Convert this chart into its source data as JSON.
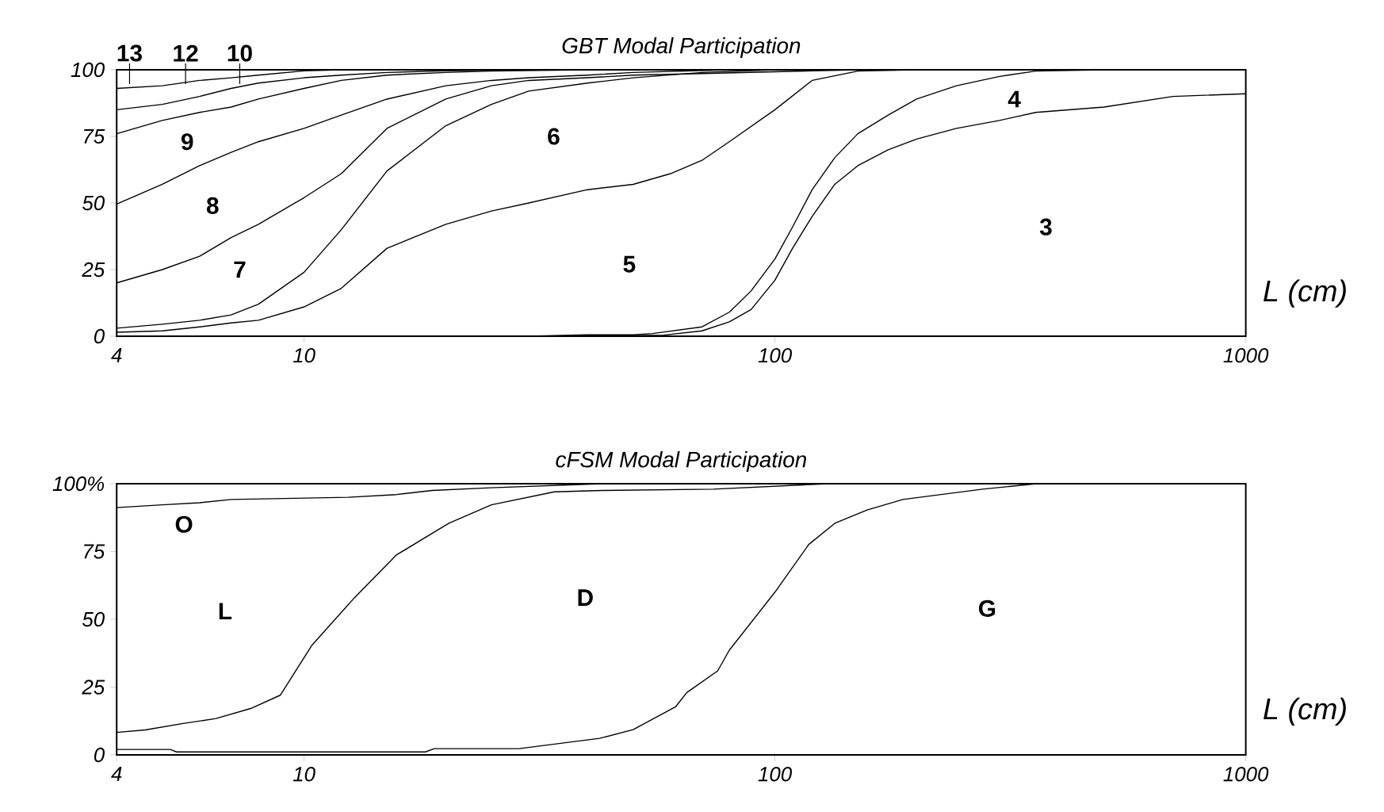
{
  "chart_data": [
    {
      "type": "line",
      "title": "GBT Modal Participation",
      "xlabel": "L (cm)",
      "log": "x",
      "marker": "none",
      "xlim": [
        4,
        1000
      ],
      "xticks": [
        4,
        10,
        100,
        1000
      ],
      "ylim": [
        0,
        100
      ],
      "yticks": [
        0,
        25,
        50,
        75,
        100
      ],
      "series": [
        {
          "color": "#000000",
          "x": [
            4,
            30,
            40,
            50,
            55,
            70,
            80,
            89,
            100,
            109,
            120,
            134,
            150,
            174,
            200,
            243,
            300,
            358,
            500,
            1000
          ],
          "values": [
            0,
            0,
            0.5,
            0.5,
            1,
            3.5,
            9,
            17,
            29,
            41,
            55,
            67,
            76,
            83,
            89,
            94,
            97.5,
            99.5,
            100,
            100
          ]
        },
        {
          "color": "#000000",
          "x": [
            4,
            40,
            58,
            70,
            80,
            89,
            100,
            109,
            120,
            134,
            150,
            174,
            200,
            243,
            300,
            358,
            500,
            700,
            1000
          ],
          "values": [
            0,
            0,
            0.4,
            2,
            5.4,
            10,
            21,
            33,
            45,
            57,
            64,
            70,
            74,
            78,
            81,
            84,
            86,
            90,
            91
          ]
        },
        {
          "color": "#000000",
          "x": [
            4,
            5,
            6,
            7,
            8,
            10,
            12,
            15,
            20,
            25,
            30,
            40,
            50,
            60,
            70,
            80,
            100,
            120,
            150,
            200,
            1000
          ],
          "values": [
            1.5,
            2,
            3.5,
            5,
            6,
            11,
            18,
            33,
            42,
            47,
            50,
            55,
            57,
            61,
            66,
            73,
            85,
            96,
            99.5,
            100,
            100
          ]
        },
        {
          "color": "#000000",
          "x": [
            4,
            5,
            6,
            7,
            8,
            10,
            12,
            15,
            20,
            25,
            30,
            40,
            50,
            70,
            100,
            1000
          ],
          "values": [
            3,
            4.5,
            6,
            8,
            12,
            24,
            40,
            62,
            79,
            87,
            92,
            95,
            97,
            99,
            100,
            100
          ]
        },
        {
          "color": "#000000",
          "x": [
            4,
            5,
            6,
            7,
            8,
            10,
            12,
            15,
            20,
            25,
            30,
            40,
            50,
            70,
            150,
            1000
          ],
          "values": [
            20,
            25,
            30,
            37,
            42,
            52,
            61,
            78,
            89,
            94,
            96,
            97,
            98,
            98.6,
            100,
            100
          ]
        },
        {
          "color": "#000000",
          "x": [
            4,
            5,
            6,
            7,
            8,
            10,
            12,
            15,
            20,
            25,
            30,
            40,
            50,
            80,
            1000
          ],
          "values": [
            49.6,
            57,
            64,
            69,
            73,
            78,
            83,
            89,
            94,
            96,
            97,
            98,
            99,
            100,
            100
          ]
        },
        {
          "color": "#000000",
          "x": [
            4,
            5,
            6,
            7,
            8,
            10,
            12,
            15,
            20,
            25,
            40,
            1000
          ],
          "values": [
            76,
            81,
            84,
            86,
            89,
            93,
            96,
            98,
            99,
            99.5,
            100,
            100
          ]
        },
        {
          "color": "#000000",
          "x": [
            4,
            5,
            6,
            7,
            8,
            10,
            12,
            15,
            20,
            30,
            1000
          ],
          "values": [
            85,
            87,
            90,
            93,
            95,
            97,
            98,
            99,
            99.6,
            100,
            100
          ]
        },
        {
          "color": "#000000",
          "x": [
            4,
            5,
            6,
            7,
            8,
            10,
            12,
            1000
          ],
          "values": [
            93,
            94,
            96,
            97,
            98,
            99.6,
            100,
            100
          ]
        }
      ],
      "annotations": [
        "13",
        "12",
        "10",
        "9",
        "8",
        "7",
        "6",
        "5",
        "4",
        "3"
      ]
    },
    {
      "type": "line",
      "title": "cFSM Modal Participation",
      "xlabel": "L (cm)",
      "log": "x",
      "marker": "none",
      "xlim": [
        4,
        1000
      ],
      "xticks": [
        4,
        10,
        100,
        1000
      ],
      "ylim": [
        0,
        100
      ],
      "yticks": [
        0,
        25,
        50,
        75,
        {
          "value": 100,
          "label": "100%"
        }
      ],
      "series": [
        {
          "color": "#000000",
          "x": [
            4,
            5.2,
            5.36,
            18.1,
            18.9,
            28.6,
            42.4,
            50,
            61.5,
            65,
            75.6,
            80,
            100,
            118,
            134,
            157,
            187,
            276,
            360,
            1000
          ],
          "values": [
            2,
            2,
            1.1,
            1.1,
            2.3,
            2.3,
            6.1,
            9.3,
            17.7,
            23,
            31,
            38.6,
            60,
            77.6,
            85.4,
            90.3,
            94.2,
            98,
            100,
            100
          ]
        },
        {
          "color": "#000000",
          "x": [
            4,
            4.6,
            5.5,
            6.5,
            7.7,
            8.9,
            10.4,
            12.8,
            15.7,
            20.3,
            25,
            34,
            43,
            74,
            130,
            1000
          ],
          "values": [
            8.3,
            9.2,
            11.5,
            13.4,
            17.1,
            22,
            40.5,
            58,
            73.7,
            85.4,
            92.2,
            97,
            97.5,
            98,
            100,
            100
          ]
        },
        {
          "color": "#000000",
          "x": [
            4,
            5,
            6,
            7,
            12.4,
            15.7,
            18.7,
            24.9,
            43,
            1000
          ],
          "values": [
            91.2,
            92.2,
            93,
            94.2,
            95,
            96,
            97.5,
            98.5,
            100,
            100
          ]
        }
      ],
      "annotations": [
        "O",
        "L",
        "D",
        "G"
      ]
    }
  ]
}
